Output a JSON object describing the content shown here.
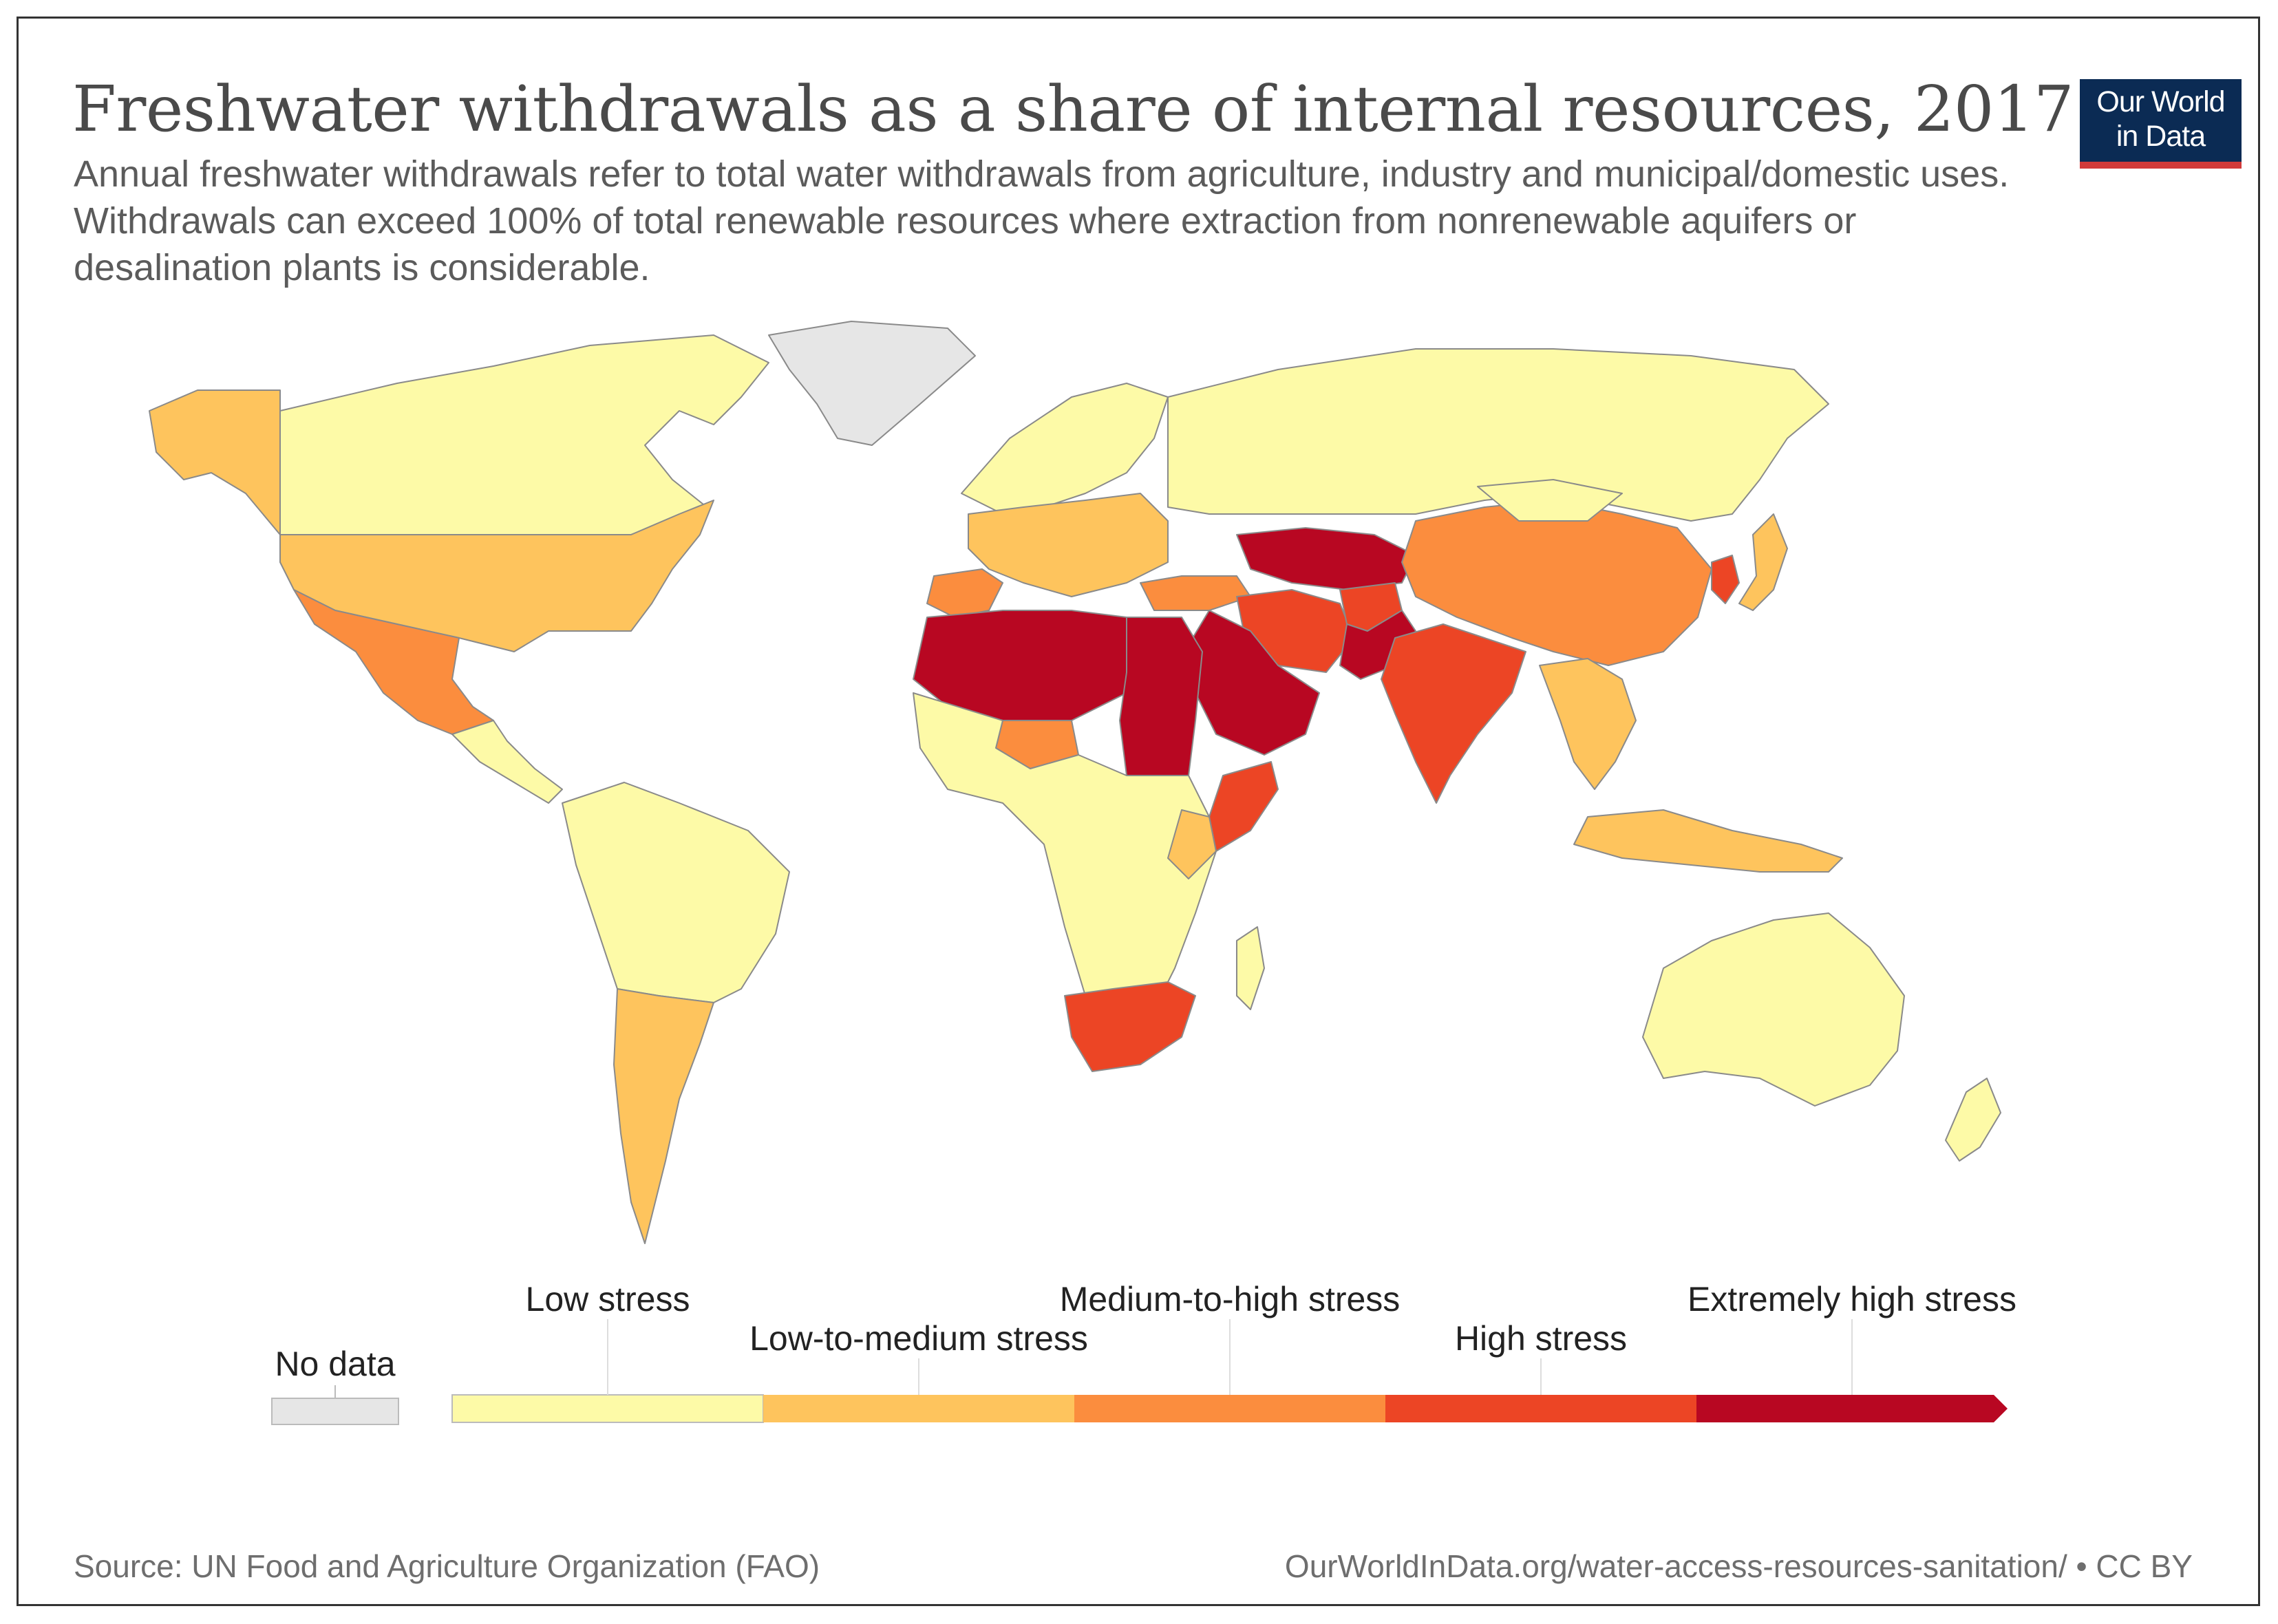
{
  "title": "Freshwater withdrawals as a share of internal resources, 2017",
  "subtitle": "Annual freshwater withdrawals refer to total water withdrawals from agriculture, industry and municipal/domestic uses. Withdrawals can exceed 100% of total renewable resources where extraction from nonrenewable aquifers or desalination plants is considerable.",
  "logo": {
    "line1": "Our World",
    "line2": "in Data",
    "bg_color": "#0b2b54",
    "accent_color": "#d13a3a"
  },
  "map": {
    "projection": "world",
    "regions": [
      {
        "name": "Canada",
        "category": "Low stress"
      },
      {
        "name": "Alaska",
        "category": "Low-to-medium stress"
      },
      {
        "name": "United States",
        "category": "Low-to-medium stress"
      },
      {
        "name": "Mexico",
        "category": "Medium-to-high stress"
      },
      {
        "name": "Central America",
        "category": "Low stress"
      },
      {
        "name": "Greenland",
        "category": "No data"
      },
      {
        "name": "South America",
        "category": "Low stress"
      },
      {
        "name": "Argentina",
        "category": "Low-to-medium stress"
      },
      {
        "name": "Northern Europe",
        "category": "Low stress"
      },
      {
        "name": "Spain",
        "category": "Medium-to-high stress"
      },
      {
        "name": "Western & Central Europe",
        "category": "Low-to-medium stress"
      },
      {
        "name": "Russia",
        "category": "Low stress"
      },
      {
        "name": "Turkey",
        "category": "Medium-to-high stress"
      },
      {
        "name": "Central Asia",
        "category": "Extremely high stress"
      },
      {
        "name": "Iran",
        "category": "High stress"
      },
      {
        "name": "Afghanistan",
        "category": "High stress"
      },
      {
        "name": "Pakistan",
        "category": "Extremely high stress"
      },
      {
        "name": "India",
        "category": "High stress"
      },
      {
        "name": "China",
        "category": "Medium-to-high stress"
      },
      {
        "name": "Mongolia",
        "category": "Low stress"
      },
      {
        "name": "Korea",
        "category": "High stress"
      },
      {
        "name": "Japan",
        "category": "Low-to-medium stress"
      },
      {
        "name": "Southeast Asia",
        "category": "Low-to-medium stress"
      },
      {
        "name": "Indonesia",
        "category": "Low-to-medium stress"
      },
      {
        "name": "Australia",
        "category": "Low stress"
      },
      {
        "name": "New Zealand",
        "category": "Low stress"
      },
      {
        "name": "North Africa",
        "category": "Extremely high stress"
      },
      {
        "name": "Arabian Peninsula",
        "category": "Extremely high stress"
      },
      {
        "name": "Egypt & Sudan",
        "category": "Extremely high stress"
      },
      {
        "name": "Somalia",
        "category": "High stress"
      },
      {
        "name": "Niger",
        "category": "Medium-to-high stress"
      },
      {
        "name": "Sub-Saharan Africa",
        "category": "Low stress"
      },
      {
        "name": "Kenya",
        "category": "Low-to-medium stress"
      },
      {
        "name": "South Africa",
        "category": "High stress"
      },
      {
        "name": "Madagascar",
        "category": "Low stress"
      }
    ]
  },
  "legend": {
    "no_data": {
      "label": "No data",
      "color": "#e6e6e6"
    },
    "bins": [
      {
        "label": "Low stress",
        "color": "#fdfaa7"
      },
      {
        "label": "Low-to-medium stress",
        "color": "#fec45d"
      },
      {
        "label": "Medium-to-high stress",
        "color": "#fb8d3e"
      },
      {
        "label": "High stress",
        "color": "#ec4525"
      },
      {
        "label": "Extremely high stress",
        "color": "#b80722"
      }
    ]
  },
  "source": "Source: UN Food and Agriculture Organization (FAO)",
  "url": "OurWorldInData.org/water-access-resources-sanitation/ • CC BY"
}
